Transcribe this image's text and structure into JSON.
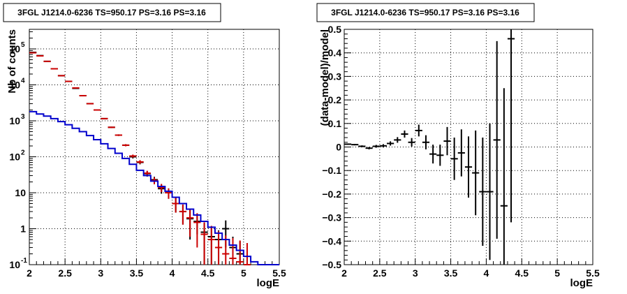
{
  "chart_data": [
    {
      "type": "line",
      "title": "3FGL J1214.0-6236 TS=950.17 PS=3.16 PS=3.16",
      "xlabel": "logE",
      "ylabel": "Nb of counts",
      "xlim": [
        2,
        5.5
      ],
      "ylim": [
        0.1,
        350000
      ],
      "yscale": "log",
      "grid": true,
      "x_ticks": [
        "2",
        "2.5",
        "3",
        "3.5",
        "4",
        "4.5",
        "5",
        "5.5"
      ],
      "y_ticks": [
        {
          "value": 0.1,
          "label": "10",
          "exp": "-1"
        },
        {
          "value": 1,
          "label": "1",
          "exp": ""
        },
        {
          "value": 10,
          "label": "10",
          "exp": ""
        },
        {
          "value": 100,
          "label": "10",
          "exp": "2"
        },
        {
          "value": 1000,
          "label": "10",
          "exp": "3"
        },
        {
          "value": 10000,
          "label": "10",
          "exp": "4"
        },
        {
          "value": 100000,
          "label": "10",
          "exp": "5"
        }
      ],
      "bin_width": 0.1,
      "series": [
        {
          "color": "#000000",
          "kind": "points",
          "x": [
            2.05,
            2.15,
            2.25,
            2.35,
            2.45,
            2.55,
            2.65,
            2.75,
            2.85,
            2.95,
            3.05,
            3.15,
            3.25,
            3.35,
            3.45,
            3.55,
            3.65,
            3.75,
            3.85,
            3.95,
            4.05,
            4.15,
            4.25,
            4.35,
            4.45,
            4.55,
            4.65,
            4.75,
            4.85,
            4.95
          ],
          "y": [
            80000,
            65000,
            45000,
            28000,
            18000,
            12500,
            8000,
            5000,
            3000,
            2000,
            1150,
            660,
            400,
            210,
            100,
            70,
            34,
            23,
            13,
            10,
            5,
            3,
            1.9,
            1.6,
            0.8,
            0.6,
            0.5,
            1,
            0.3,
            0.2
          ],
          "err": [
            280,
            250,
            210,
            170,
            130,
            110,
            90,
            70,
            55,
            45,
            34,
            26,
            20,
            14,
            10,
            8.4,
            5.8,
            4.8,
            3.6,
            3.2,
            2.2,
            1.7,
            1.4,
            0.9,
            0.7,
            0.5,
            0.4,
            0.7,
            0.3,
            0.25
          ]
        },
        {
          "color": "#cc0000",
          "kind": "points",
          "x": [
            2.05,
            2.15,
            2.25,
            2.35,
            2.45,
            2.55,
            2.65,
            2.75,
            2.85,
            2.95,
            3.05,
            3.15,
            3.25,
            3.35,
            3.45,
            3.55,
            3.65,
            3.75,
            3.85,
            3.95,
            4.05,
            4.15,
            4.25,
            4.35,
            4.45,
            4.55,
            4.65,
            4.75,
            4.85,
            4.95,
            5.05
          ],
          "y": [
            78000,
            64000,
            45000,
            28000,
            18000,
            12500,
            8200,
            5000,
            3000,
            2000,
            1150,
            660,
            400,
            210,
            105,
            72,
            35,
            22,
            14,
            10,
            5,
            3,
            2,
            1.5,
            0.7,
            0.5,
            0.3,
            0.2,
            0.15,
            0.12,
            0.1
          ],
          "err": [
            280,
            250,
            210,
            170,
            130,
            110,
            90,
            70,
            55,
            45,
            34,
            26,
            20,
            14,
            10,
            8.4,
            5.8,
            4.8,
            3.6,
            3.2,
            2.2,
            1.7,
            1.4,
            1.2,
            0.8,
            0.7,
            0.55,
            0.45,
            0.4,
            0.35,
            0.3
          ]
        },
        {
          "color": "#0000cc",
          "kind": "step",
          "edges": [
            2.0,
            2.1,
            2.2,
            2.3,
            2.4,
            2.5,
            2.6,
            2.7,
            2.8,
            2.9,
            3.0,
            3.1,
            3.2,
            3.3,
            3.4,
            3.5,
            3.6,
            3.7,
            3.8,
            3.9,
            4.0,
            4.1,
            4.2,
            4.3,
            4.4,
            4.5,
            4.6,
            4.7,
            4.8,
            4.9,
            5.0,
            5.1,
            5.2,
            5.3,
            5.4,
            5.5
          ],
          "y": [
            1800,
            1550,
            1350,
            1150,
            950,
            780,
            620,
            500,
            390,
            300,
            230,
            170,
            125,
            90,
            62,
            42,
            30,
            21,
            15,
            11,
            7.5,
            5,
            3.5,
            2.4,
            1.6,
            1.1,
            0.75,
            0.5,
            0.35,
            0.25,
            0.17,
            0.12,
            0.1,
            0.1,
            0.1
          ]
        }
      ]
    },
    {
      "type": "scatter",
      "title": "3FGL J1214.0-6236 TS=950.17 PS=3.16 PS=3.16",
      "xlabel": "logE",
      "ylabel": "(data-model)/model",
      "xlim": [
        2,
        5.5
      ],
      "ylim": [
        -0.5,
        0.5
      ],
      "grid": true,
      "x_ticks": [
        "2",
        "2.5",
        "3",
        "3.5",
        "4",
        "4.5",
        "5",
        "5.5"
      ],
      "y_ticks": [
        "−0.5",
        "−0.4",
        "−0.3",
        "−0.2",
        "−0.1",
        "0",
        "0.1",
        "0.2",
        "0.3",
        "0.4",
        "0.5"
      ],
      "bin_width": 0.1,
      "series": [
        {
          "color": "#000000",
          "x": [
            2.05,
            2.15,
            2.25,
            2.35,
            2.45,
            2.55,
            2.65,
            2.75,
            2.85,
            2.95,
            3.05,
            3.15,
            3.25,
            3.35,
            3.45,
            3.55,
            3.65,
            3.75,
            3.85,
            3.95,
            4.05,
            4.15,
            4.25,
            4.35
          ],
          "y": [
            0.012,
            0.01,
            0.003,
            -0.005,
            0.003,
            0.005,
            0.015,
            0.03,
            0.055,
            0.02,
            0.07,
            0.02,
            -0.03,
            -0.035,
            0.025,
            -0.05,
            -0.025,
            -0.085,
            -0.11,
            -0.19,
            -0.19,
            0.03,
            -0.25,
            0.46
          ],
          "err": [
            0.003,
            0.003,
            0.004,
            0.005,
            0.006,
            0.007,
            0.009,
            0.012,
            0.015,
            0.018,
            0.025,
            0.03,
            0.04,
            0.045,
            0.06,
            0.09,
            0.1,
            0.13,
            0.18,
            0.23,
            0.29,
            0.42,
            0.5,
            0.78
          ]
        }
      ]
    }
  ]
}
